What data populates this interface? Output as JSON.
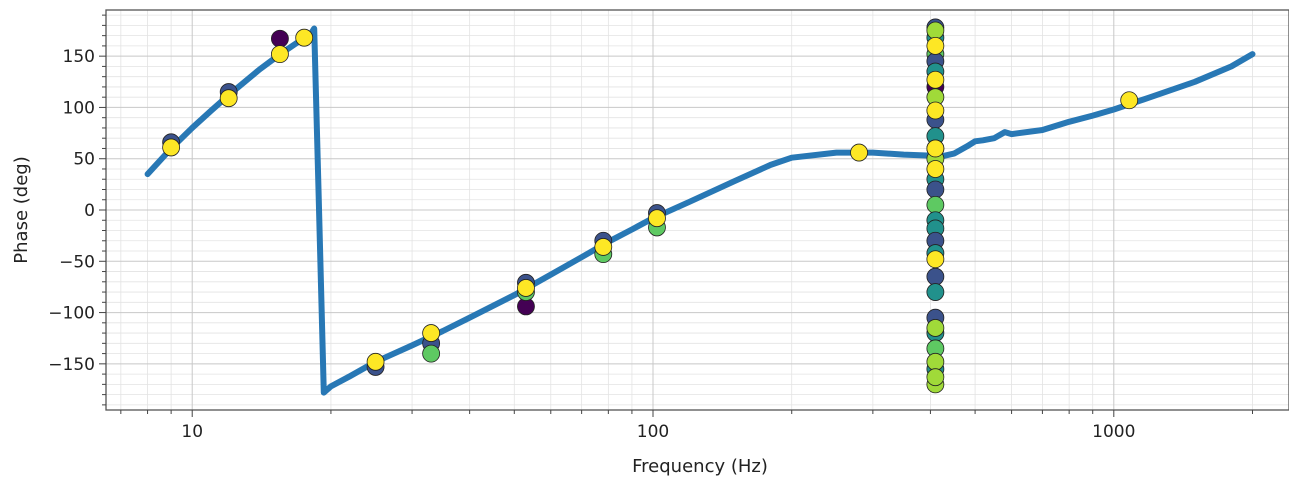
{
  "chart_data": {
    "type": "scatter",
    "title": "",
    "xlabel": "Frequency (Hz)",
    "ylabel": "Phase (deg)",
    "xscale": "log",
    "xlim": [
      6.5,
      2400
    ],
    "ylim": [
      -195,
      195
    ],
    "x_ticks": [
      10,
      100,
      1000
    ],
    "x_tick_labels": [
      "10",
      "100",
      "1000"
    ],
    "y_ticks": [
      -150,
      -100,
      -50,
      0,
      50,
      100,
      150
    ],
    "y_tick_labels": [
      "−150",
      "−100",
      "−50",
      "0",
      "50",
      "100",
      "150"
    ],
    "grid": true,
    "line_color": "#2878b5",
    "series": [
      {
        "kind": "line",
        "x": [
          8,
          9,
          10,
          11,
          12,
          13,
          14,
          15,
          16,
          17,
          18,
          18.4,
          18.8,
          19.3,
          20,
          22,
          25,
          30,
          35,
          40,
          50,
          60,
          70,
          80,
          90,
          100,
          120,
          150,
          180,
          200,
          250,
          300,
          350,
          400,
          420,
          450,
          480,
          500,
          520,
          550,
          580,
          600,
          700,
          800,
          900,
          1000,
          1200,
          1500,
          1800,
          2000
        ],
        "y": [
          35,
          60,
          80,
          97,
          112,
          125,
          137,
          147,
          156,
          164,
          170,
          177,
          20,
          -178,
          -172,
          -162,
          -148,
          -132,
          -118,
          -105,
          -83,
          -63,
          -46,
          -31,
          -19,
          -8,
          8,
          28,
          44,
          51,
          56,
          56,
          54,
          53,
          52,
          55,
          62,
          67,
          68,
          70,
          76,
          74,
          78,
          86,
          92,
          98,
          110,
          125,
          140,
          152
        ]
      }
    ],
    "scatter_colors": [
      "#440154",
      "#3b528b",
      "#21918c",
      "#5ec962",
      "#a0da39",
      "#fde725"
    ],
    "scatter_points": [
      {
        "x": 9,
        "y": 66,
        "c": 1
      },
      {
        "x": 9,
        "y": 61,
        "c": 5
      },
      {
        "x": 12,
        "y": 115,
        "c": 1
      },
      {
        "x": 12,
        "y": 109,
        "c": 5
      },
      {
        "x": 15.5,
        "y": 167,
        "c": 0
      },
      {
        "x": 15.5,
        "y": 152,
        "c": 5
      },
      {
        "x": 17.5,
        "y": 168,
        "c": 5
      },
      {
        "x": 25,
        "y": -153,
        "c": 1
      },
      {
        "x": 25,
        "y": -148,
        "c": 5
      },
      {
        "x": 33,
        "y": -130,
        "c": 1
      },
      {
        "x": 33,
        "y": -140,
        "c": 3
      },
      {
        "x": 33,
        "y": -120,
        "c": 5
      },
      {
        "x": 53,
        "y": -94,
        "c": 0
      },
      {
        "x": 53,
        "y": -71,
        "c": 1
      },
      {
        "x": 53,
        "y": -80,
        "c": 3
      },
      {
        "x": 53,
        "y": -76,
        "c": 5
      },
      {
        "x": 78,
        "y": -30,
        "c": 1
      },
      {
        "x": 78,
        "y": -43,
        "c": 3
      },
      {
        "x": 78,
        "y": -36,
        "c": 5
      },
      {
        "x": 102,
        "y": -3,
        "c": 1
      },
      {
        "x": 102,
        "y": -17,
        "c": 3
      },
      {
        "x": 102,
        "y": -8,
        "c": 5
      },
      {
        "x": 280,
        "y": 56,
        "c": 5
      },
      {
        "x": 410,
        "y": 178,
        "c": 1
      },
      {
        "x": 410,
        "y": 168,
        "c": 2
      },
      {
        "x": 410,
        "y": 152,
        "c": 3
      },
      {
        "x": 410,
        "y": 145,
        "c": 1
      },
      {
        "x": 410,
        "y": 135,
        "c": 2
      },
      {
        "x": 410,
        "y": 120,
        "c": 0
      },
      {
        "x": 410,
        "y": 110,
        "c": 4
      },
      {
        "x": 410,
        "y": 88,
        "c": 1
      },
      {
        "x": 410,
        "y": 72,
        "c": 2
      },
      {
        "x": 410,
        "y": 60,
        "c": 3
      },
      {
        "x": 410,
        "y": 50,
        "c": 4
      },
      {
        "x": 410,
        "y": 30,
        "c": 2
      },
      {
        "x": 410,
        "y": 20,
        "c": 1
      },
      {
        "x": 410,
        "y": 5,
        "c": 3
      },
      {
        "x": 410,
        "y": -10,
        "c": 2
      },
      {
        "x": 410,
        "y": -18,
        "c": 2
      },
      {
        "x": 410,
        "y": -30,
        "c": 1
      },
      {
        "x": 410,
        "y": -42,
        "c": 2
      },
      {
        "x": 410,
        "y": -65,
        "c": 1
      },
      {
        "x": 410,
        "y": -80,
        "c": 2
      },
      {
        "x": 410,
        "y": -105,
        "c": 1
      },
      {
        "x": 410,
        "y": -120,
        "c": 2
      },
      {
        "x": 410,
        "y": -135,
        "c": 3
      },
      {
        "x": 410,
        "y": -155,
        "c": 2
      },
      {
        "x": 410,
        "y": -170,
        "c": 4
      },
      {
        "x": 410,
        "y": 175,
        "c": 4
      },
      {
        "x": 410,
        "y": 160,
        "c": 5
      },
      {
        "x": 410,
        "y": 127,
        "c": 5
      },
      {
        "x": 410,
        "y": 97,
        "c": 5
      },
      {
        "x": 410,
        "y": 60,
        "c": 5
      },
      {
        "x": 410,
        "y": 40,
        "c": 5
      },
      {
        "x": 410,
        "y": -48,
        "c": 5
      },
      {
        "x": 410,
        "y": -115,
        "c": 4
      },
      {
        "x": 410,
        "y": -148,
        "c": 4
      },
      {
        "x": 410,
        "y": -163,
        "c": 4
      },
      {
        "x": 1080,
        "y": 107,
        "c": 5
      }
    ]
  }
}
